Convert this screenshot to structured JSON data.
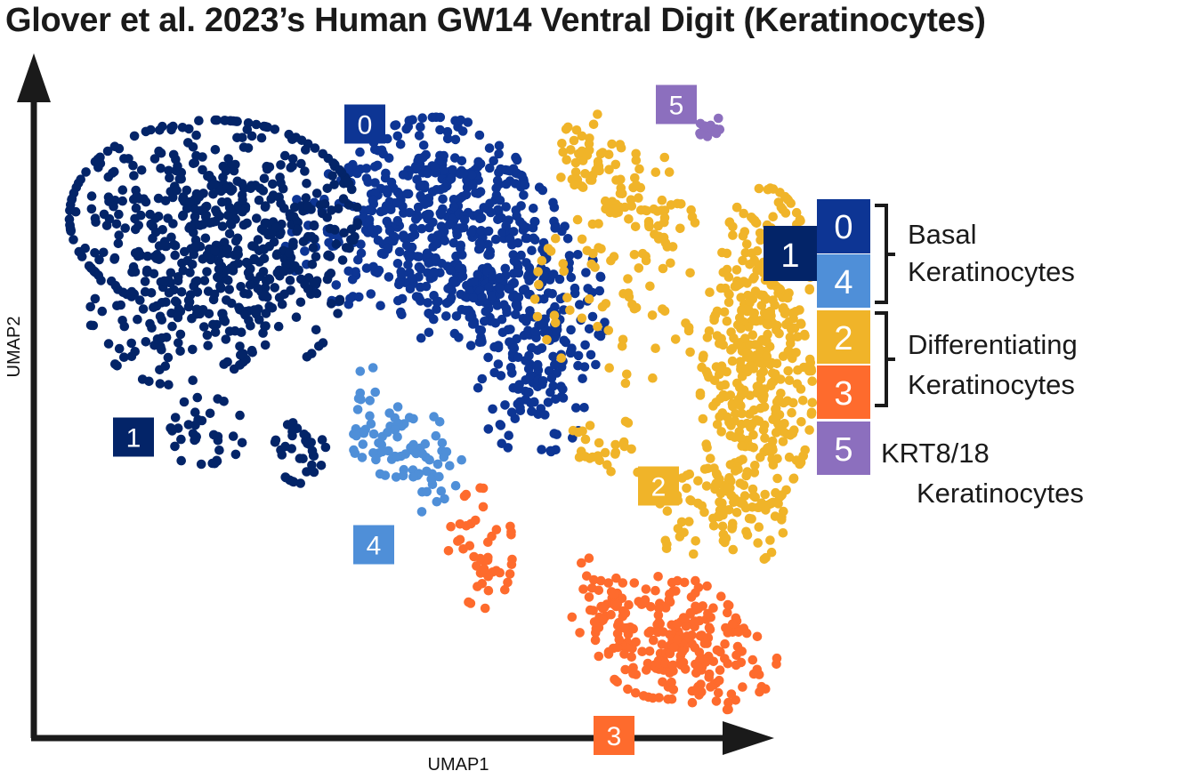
{
  "chart_data": {
    "type": "scatter",
    "title": "Glover et al. 2023’s Human GW14 Ventral Digit (Keratinocytes)",
    "xlabel": "UMAP1",
    "ylabel": "UMAP2",
    "grid": false,
    "legend_position": "right",
    "clusters": [
      {
        "id": "0",
        "color": "#0d3594",
        "blobs": [
          [
            4.3,
            4.9,
            0.55,
            0.4,
            220
          ],
          [
            4.9,
            4.2,
            0.5,
            0.5,
            200
          ],
          [
            5.5,
            3.6,
            0.4,
            0.5,
            120
          ],
          [
            3.5,
            4.4,
            0.5,
            0.4,
            110
          ],
          [
            5.4,
            2.8,
            0.35,
            0.35,
            80
          ],
          [
            4.5,
            3.8,
            0.35,
            0.3,
            60
          ]
        ]
      },
      {
        "id": "1",
        "color": "#032468",
        "blobs": [
          [
            1.8,
            4.6,
            0.9,
            0.55,
            480
          ],
          [
            1.4,
            3.6,
            0.55,
            0.4,
            120
          ],
          [
            1.7,
            2.4,
            0.25,
            0.2,
            35
          ],
          [
            2.8,
            2.2,
            0.18,
            0.18,
            35
          ],
          [
            2.5,
            3.8,
            0.4,
            0.4,
            70
          ]
        ]
      },
      {
        "id": "2",
        "color": "#f0b429",
        "blobs": [
          [
            6.1,
            5.2,
            0.25,
            0.25,
            45
          ],
          [
            6.6,
            4.7,
            0.35,
            0.35,
            55
          ],
          [
            8.0,
            4.0,
            0.28,
            0.5,
            150
          ],
          [
            7.9,
            2.8,
            0.35,
            0.65,
            300
          ],
          [
            7.5,
            1.5,
            0.4,
            0.3,
            80
          ],
          [
            6.4,
            3.8,
            0.55,
            0.5,
            70
          ],
          [
            6.2,
            2.2,
            0.25,
            0.2,
            25
          ]
        ]
      },
      {
        "id": "3",
        "color": "#fe6b2d",
        "blobs": [
          [
            6.9,
            0.3,
            0.45,
            0.35,
            170
          ],
          [
            7.5,
            0.1,
            0.35,
            0.3,
            70
          ],
          [
            4.8,
            1.2,
            0.2,
            0.35,
            45
          ],
          [
            6.2,
            0.7,
            0.25,
            0.25,
            35
          ]
        ]
      },
      {
        "id": "4",
        "color": "#4f8fd8",
        "blobs": [
          [
            3.9,
            2.3,
            0.3,
            0.2,
            60
          ],
          [
            4.3,
            1.9,
            0.2,
            0.2,
            20
          ],
          [
            3.6,
            2.8,
            0.15,
            0.15,
            10
          ]
        ]
      },
      {
        "id": "5",
        "color": "#8c6fbe",
        "blobs": [
          [
            7.4,
            5.5,
            0.08,
            0.07,
            12
          ]
        ]
      }
    ],
    "cluster_labels": [
      {
        "text": "0",
        "x": 3.5,
        "y": 5.55,
        "color": "#0d3594"
      },
      {
        "text": "1",
        "x": 0.9,
        "y": 2.35,
        "color": "#032468"
      },
      {
        "text": "2",
        "x": 6.8,
        "y": 1.85,
        "color": "#f0b429"
      },
      {
        "text": "3",
        "x": 6.3,
        "y": -0.7,
        "color": "#fe6b2d"
      },
      {
        "text": "4",
        "x": 3.6,
        "y": 1.25,
        "color": "#4f8fd8"
      },
      {
        "text": "5",
        "x": 7.0,
        "y": 5.75,
        "color": "#8c6fbe"
      }
    ],
    "legend": {
      "outer": {
        "text": "1",
        "color": "#032468"
      },
      "items": [
        {
          "text": "0",
          "color": "#0d3594"
        },
        {
          "text": "4",
          "color": "#4f8fd8"
        },
        {
          "text": "2",
          "color": "#f0b429"
        },
        {
          "text": "3",
          "color": "#fe6b2d"
        },
        {
          "text": "5",
          "color": "#8c6fbe"
        }
      ],
      "groups": [
        {
          "line1": "Basal",
          "line2": "Keratinocytes"
        },
        {
          "line1": "Differentiating",
          "line2": "Keratinocytes"
        },
        {
          "line1": "KRT8/18",
          "line2": "Keratinocytes"
        }
      ]
    }
  }
}
